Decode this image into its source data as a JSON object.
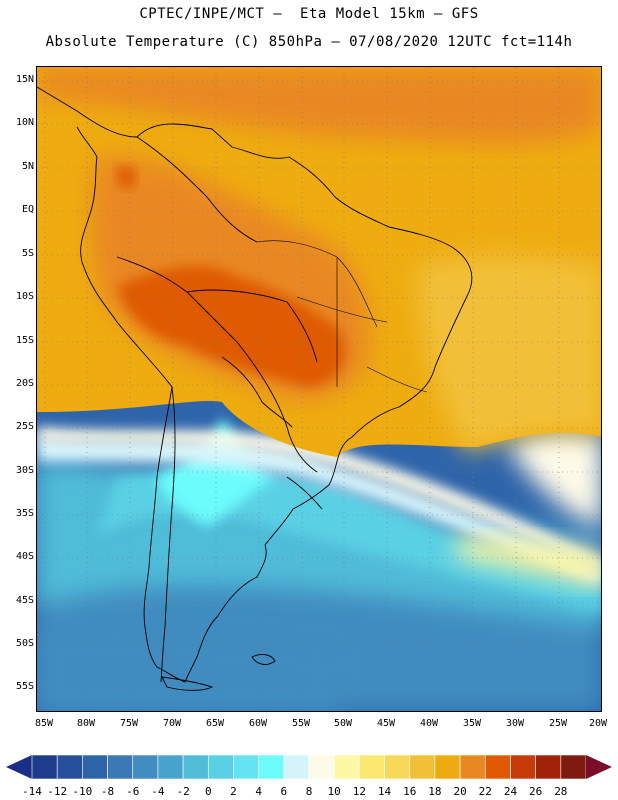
{
  "header": {
    "line1": "CPTEC/INPE/MCT –  Eta Model 15km – GFS",
    "line2": "Absolute Temperature (C) 850hPa – 07/08/2020 12UTC fct=114h"
  },
  "map": {
    "lat_labels": [
      "15N",
      "10N",
      "5N",
      "EQ",
      "5S",
      "10S",
      "15S",
      "20S",
      "25S",
      "30S",
      "35S",
      "40S",
      "45S",
      "50S",
      "55S"
    ],
    "lon_labels": [
      "85W",
      "80W",
      "75W",
      "70W",
      "65W",
      "60W",
      "55W",
      "50W",
      "45W",
      "40W",
      "35W",
      "30W",
      "25W",
      "20W"
    ]
  },
  "colorbar": {
    "labels": [
      "-14",
      "-12",
      "-10",
      "-8",
      "-6",
      "-4",
      "-2",
      "0",
      "2",
      "4",
      "6",
      "8",
      "10",
      "12",
      "14",
      "16",
      "18",
      "20",
      "22",
      "24",
      "26",
      "28"
    ],
    "colors": [
      "#1d3c8c",
      "#26509c",
      "#2e64aa",
      "#3a78b6",
      "#418cc0",
      "#48a4cc",
      "#50bcd8",
      "#5ad0e4",
      "#64e4f0",
      "#6cfcfc",
      "#d4f4fc",
      "#fefae8",
      "#fdf8a4",
      "#fbe870",
      "#f8d858",
      "#f2c038",
      "#eeac10",
      "#e98820",
      "#df5a04",
      "#c73a0a",
      "#a22208",
      "#7e1a10"
    ],
    "under_color": "#1a2e88",
    "over_color": "#7a0e2a"
  }
}
